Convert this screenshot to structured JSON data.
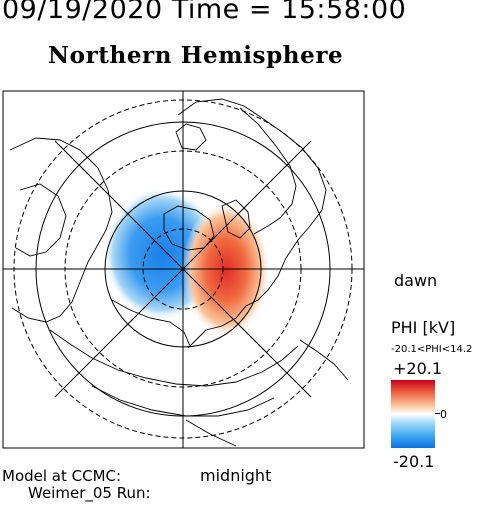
{
  "header": {
    "datetime": "09/19/2020 Time = 15:58:00",
    "hemisphere": "Northern Hemisphere"
  },
  "labels": {
    "dawn": "dawn",
    "midnight": "midnight",
    "model": "Model at CCMC:",
    "run": "Weimer_05 Run:"
  },
  "colorbar": {
    "title": "PHI [kV]",
    "range": "-20.1<PHI<14.2",
    "max": "+20.1",
    "zero": "0",
    "min": "-20.1",
    "colors": {
      "positive": "#c8001e",
      "neutral": "#ffffff",
      "negative": "#0a70e0"
    }
  },
  "map": {
    "pole_potential_kV": {
      "dawn_cell_max": 14.2,
      "dusk_cell_min": -20.1
    }
  }
}
